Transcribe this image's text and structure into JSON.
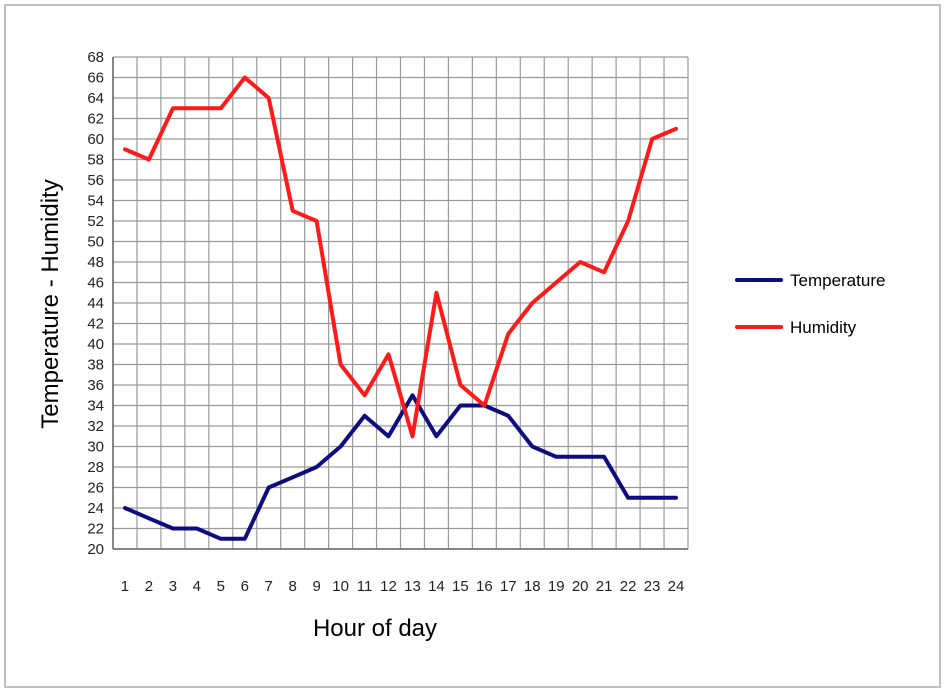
{
  "chart_data": {
    "type": "line",
    "title": "",
    "xlabel": "Hour of day",
    "ylabel": "Temperature  -  Humidity",
    "x": [
      1,
      2,
      3,
      4,
      5,
      6,
      7,
      8,
      9,
      10,
      11,
      12,
      13,
      14,
      15,
      16,
      17,
      18,
      19,
      20,
      21,
      22,
      23,
      24
    ],
    "ylim": [
      20,
      68
    ],
    "yticks": [
      20,
      22,
      24,
      26,
      28,
      30,
      32,
      34,
      36,
      38,
      40,
      42,
      44,
      46,
      48,
      50,
      52,
      54,
      56,
      58,
      60,
      62,
      64,
      66,
      68
    ],
    "grid": true,
    "legend_position": "right",
    "series": [
      {
        "name": "Temperature",
        "color": "#0d0d80",
        "values": [
          24,
          23,
          22,
          22,
          21,
          21,
          26,
          27,
          28,
          30,
          33,
          31,
          35,
          31,
          34,
          34,
          33,
          30,
          29,
          29,
          29,
          25,
          25,
          25
        ]
      },
      {
        "name": "Humidity",
        "color": "#ff1a1a",
        "values": [
          59,
          58,
          63,
          63,
          63,
          66,
          64,
          53,
          52,
          38,
          35,
          39,
          31,
          45,
          36,
          34,
          41,
          44,
          46,
          48,
          47,
          52,
          60,
          61
        ]
      }
    ]
  }
}
